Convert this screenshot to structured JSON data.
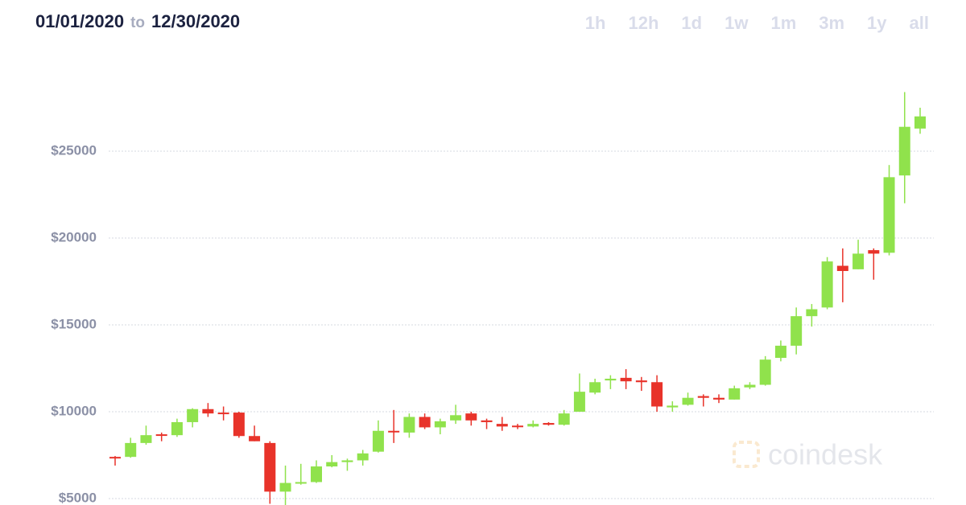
{
  "header": {
    "start_date": "01/01/2020",
    "separator": "to",
    "end_date": "12/30/2020",
    "ranges": [
      "1h",
      "12h",
      "1d",
      "1w",
      "1m",
      "3m",
      "1y",
      "all"
    ]
  },
  "watermark": "coindesk",
  "chart_data": {
    "type": "candlestick",
    "up_color": "#90e24c",
    "down_color": "#e8332a",
    "grid": true,
    "ylim": [
      4630,
      33700
    ],
    "yticks": [
      {
        "value": 5000,
        "label": "$5000"
      },
      {
        "value": 10000,
        "label": "$10000"
      },
      {
        "value": 15000,
        "label": "$15000"
      },
      {
        "value": 20000,
        "label": "$20000"
      },
      {
        "value": 25000,
        "label": "$25000"
      }
    ],
    "open": [
      7400,
      7400,
      8200,
      8700,
      8650,
      9400,
      10150,
      9950,
      9950,
      8600,
      8200,
      5400,
      5900,
      5950,
      6850,
      7100,
      7200,
      7700,
      8900,
      8800,
      9700,
      9100,
      9500,
      9900,
      9500,
      9300,
      9200,
      9150,
      9350,
      9250,
      10000,
      11100,
      11800,
      11950,
      11800,
      11700,
      10250,
      10400,
      10900,
      10800,
      10700,
      11400,
      11550,
      13100,
      13800,
      15500,
      16000,
      18400,
      18200,
      19300,
      19150,
      23600,
      26300
    ],
    "high": [
      7450,
      8500,
      9200,
      8800,
      9600,
      10200,
      10500,
      10300,
      10000,
      9200,
      8300,
      6900,
      7000,
      7200,
      7500,
      7300,
      7800,
      9500,
      10100,
      9900,
      9900,
      9600,
      10400,
      10000,
      9600,
      9700,
      9300,
      9500,
      9400,
      10100,
      12200,
      11900,
      12100,
      12450,
      12000,
      12100,
      10600,
      11100,
      11000,
      11000,
      11500,
      11700,
      13200,
      14100,
      16000,
      16200,
      18900,
      19400,
      19900,
      19400,
      24200,
      28400,
      27500
    ],
    "low": [
      6900,
      7350,
      8100,
      8300,
      8550,
      9100,
      9700,
      9500,
      8500,
      8300,
      4700,
      4600,
      5800,
      5900,
      6800,
      6600,
      6900,
      7650,
      8200,
      8500,
      9000,
      8700,
      9300,
      9200,
      9000,
      8900,
      9000,
      9100,
      9200,
      9200,
      10000,
      11000,
      11300,
      11300,
      11200,
      10000,
      10000,
      10350,
      10300,
      10500,
      10700,
      11300,
      11500,
      12900,
      13300,
      14900,
      15900,
      16300,
      18200,
      17600,
      19000,
      22000,
      26000
    ],
    "close": [
      7350,
      8200,
      8650,
      8650,
      9400,
      10150,
      9900,
      9900,
      8600,
      8300,
      5400,
      5900,
      5950,
      6850,
      7100,
      7200,
      7600,
      8900,
      8850,
      9700,
      9100,
      9450,
      9800,
      9500,
      9400,
      9150,
      9150,
      9300,
      9250,
      9900,
      11150,
      11700,
      11900,
      11750,
      11700,
      10300,
      10350,
      10800,
      10800,
      10700,
      11350,
      11550,
      13000,
      13800,
      15500,
      15900,
      18650,
      18100,
      19100,
      19100,
      23500,
      26400,
      27000
    ]
  }
}
